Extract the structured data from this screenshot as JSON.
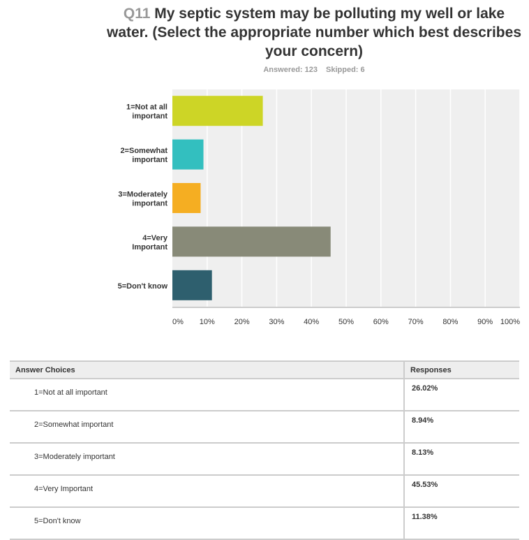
{
  "chart_data": {
    "type": "bar",
    "orientation": "horizontal",
    "title_prefix": "Q11",
    "title": "My septic system may be polluting my well or lake water. (Select the appropriate number which best describes your concern)",
    "answered": "Answered: 123",
    "skipped": "Skipped: 6",
    "categories": [
      [
        "1=Not at all",
        "important"
      ],
      [
        "2=Somewhat",
        "important"
      ],
      [
        "3=Moderately",
        "important"
      ],
      [
        "4=Very",
        "Important"
      ],
      [
        "5=Don't know"
      ]
    ],
    "values": [
      26.02,
      8.94,
      8.13,
      45.53,
      11.38
    ],
    "colors": [
      "#cdd526",
      "#33bfbf",
      "#f5ae22",
      "#888a78",
      "#2e5f6e"
    ],
    "xlim": [
      0,
      100
    ],
    "xticks": [
      "0%",
      "10%",
      "20%",
      "30%",
      "40%",
      "50%",
      "60%",
      "70%",
      "80%",
      "90%",
      "100%"
    ],
    "grid": true
  },
  "table": {
    "headers": [
      "Answer Choices",
      "Responses"
    ],
    "rows": [
      {
        "choice": "1=Not at all important",
        "response": "26.02%"
      },
      {
        "choice": "2=Somewhat important",
        "response": "8.94%"
      },
      {
        "choice": "3=Moderately important",
        "response": "8.13%"
      },
      {
        "choice": "4=Very Important",
        "response": "45.53%"
      },
      {
        "choice": "5=Don't know",
        "response": "11.38%"
      }
    ]
  }
}
